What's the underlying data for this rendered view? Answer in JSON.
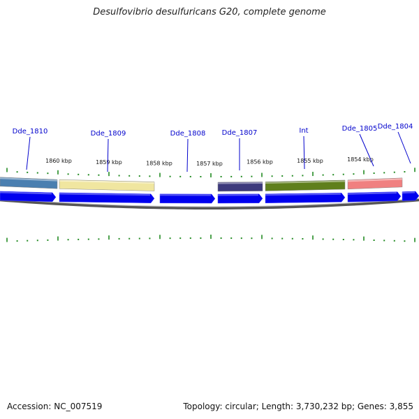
{
  "title": "Desulfovibrio desulfuricans G20, complete genome",
  "footer": {
    "accession": "Accession: NC_007519",
    "stats": "Topology: circular; Length: 3,730,232 bp; Genes: 3,855"
  },
  "scale_labels": [
    "1860 kbp",
    "1859 kbp",
    "1858 kbp",
    "1857 kbp",
    "1856 kbp",
    "1855 kbp",
    "1854 kbp"
  ],
  "genes": [
    {
      "name": "Dde_1810",
      "color": "#4a7fb0"
    },
    {
      "name": "Dde_1809",
      "color": "#f0e6a0"
    },
    {
      "name": "Dde_1808",
      "color": ""
    },
    {
      "name": "Dde_1807",
      "color": "#3d3a7c"
    },
    {
      "name": "Int",
      "color": "#5f7f1c"
    },
    {
      "name": "Dde_1805",
      "color": "#f08080"
    },
    {
      "name": "Dde_1804",
      "color": ""
    }
  ],
  "colors": {
    "strand_arrow": "#0000ee",
    "tick": "#228b22",
    "backbone": "#808080",
    "label_line": "#0000cc"
  }
}
